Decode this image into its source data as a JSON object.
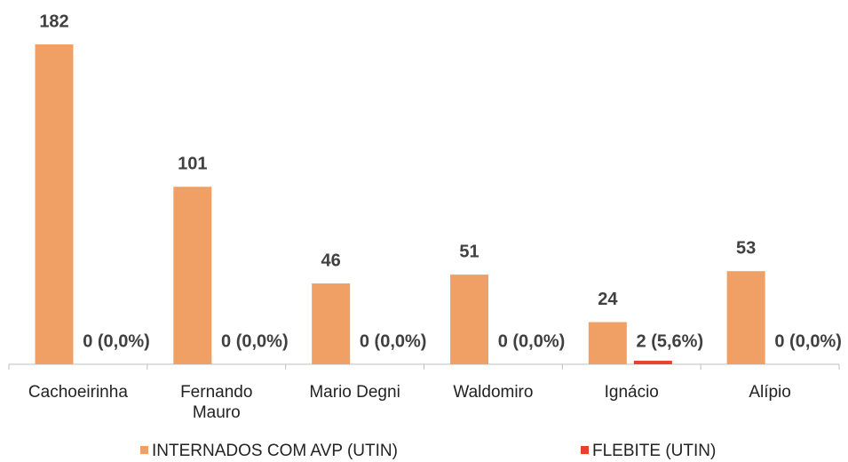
{
  "chart_data": {
    "type": "bar",
    "categories": [
      "Cachoeirinha",
      "Fernando Mauro",
      "Mario Degni",
      "Waldomiro",
      "Ignácio",
      "Alípio"
    ],
    "series": [
      {
        "name": "INTERNADOS COM AVP (UTIN)",
        "color": "#f0a064",
        "values": [
          182,
          101,
          46,
          51,
          24,
          53
        ]
      },
      {
        "name": "FLEBITE (UTIN)",
        "color": "#e8412c",
        "values": [
          0,
          0,
          0,
          0,
          2,
          0
        ],
        "value_labels": [
          "0 (0,0%)",
          "0 (0,0%)",
          "0 (0,0%)",
          "0 (0,0%)",
          "2 (5,6%)",
          "0 (0,0%)"
        ]
      }
    ]
  }
}
